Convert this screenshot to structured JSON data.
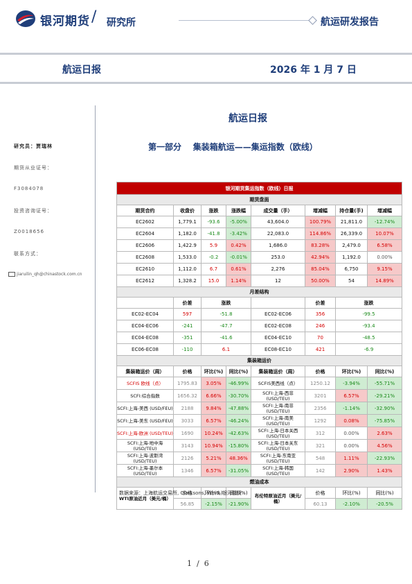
{
  "header": {
    "logo_text": "银河期货",
    "slash": "/",
    "institute": "研究所",
    "report_type": "航运研发报告"
  },
  "banner": {
    "report_name": "航运日报",
    "date": "2026 年 1 月 7 日"
  },
  "sidebar": {
    "researcher": "研究员：贾瑞林",
    "futures_cert_label": "期货从业证号：",
    "futures_cert": "F3084078",
    "invest_cert_label": "投资咨询证号：",
    "invest_cert": "Z0018656",
    "contact_label": "联系方式：",
    "email": "jiaruilin_qh@chinastock.com.cn"
  },
  "doc_title": "航运日报",
  "section_title": "第一部分    集装箱航运——集运指数（欧线）",
  "table": {
    "title": "银河期货集运指数（欧线）日报",
    "futures": {
      "section": "期货盘面",
      "headers": [
        "期货合约",
        "收盘价",
        "涨跌",
        "涨跌幅",
        "成交量（手）",
        "增减幅",
        "持仓量(手)",
        "增减幅"
      ],
      "rows": [
        [
          "EC2602",
          "1,779.1",
          "-93.6",
          "-5.00%",
          "43,604.0",
          "100.79%",
          "21,811.0",
          "-12.74%"
        ],
        [
          "EC2604",
          "1,182.0",
          "-41.8",
          "-3.42%",
          "22,083.0",
          "114.86%",
          "26,339.0",
          "10.07%"
        ],
        [
          "EC2606",
          "1,422.9",
          "5.9",
          "0.42%",
          "1,686.0",
          "83.28%",
          "2,479.0",
          "6.58%"
        ],
        [
          "EC2608",
          "1,533.0",
          "-0.2",
          "-0.01%",
          "253.0",
          "42.94%",
          "1,192.0",
          "0.00%"
        ],
        [
          "EC2610",
          "1,112.0",
          "6.7",
          "0.61%",
          "2,276",
          "85.04%",
          "6,750",
          "9.15%"
        ],
        [
          "EC2612",
          "1,328.2",
          "15.0",
          "1.14%",
          "12",
          "50.00%",
          "54",
          "14.89%"
        ]
      ]
    },
    "spread": {
      "section": "月差结构",
      "headers": [
        "价差",
        "涨跌",
        "价差",
        "涨跌"
      ],
      "rows": [
        [
          "EC02-EC04",
          "597",
          "-51.8",
          "EC02-EC06",
          "356",
          "-99.5"
        ],
        [
          "EC04-EC06",
          "-241",
          "-47.7",
          "EC02-EC08",
          "246",
          "-93.4"
        ],
        [
          "EC04-EC08",
          "-351",
          "-41.6",
          "EC04-EC10",
          "70",
          "-48.5"
        ],
        [
          "EC06-EC08",
          "-110",
          "6.1",
          "EC08-EC10",
          "421",
          "-6.9"
        ]
      ]
    },
    "freight": {
      "section": "集装箱运价",
      "headers": [
        "集装箱运价（周）",
        "价格",
        "环比(%)",
        "同比(%)",
        "集装箱运价（周）",
        "价格",
        "环比(%)",
        "同比(%)"
      ],
      "rows": [
        [
          "SCFIS 欧线（点）",
          "1795.83",
          "3.05%",
          "-46.99%",
          "SCFIS美西线（点）",
          "1250.12",
          "-3.94%",
          "-55.71%"
        ],
        [
          "SCFI:综合指数",
          "1656.32",
          "6.66%",
          "-30.70%",
          "SCFI:上海-西非 (USD/TEU)",
          "3201",
          "6.57%",
          "-29.21%"
        ],
        [
          "SCFI:上海-美西 (USD/FEU)",
          "2188",
          "9.84%",
          "-47.88%",
          "SCFI:上海-南非 (USD/TEU)",
          "2356",
          "-1.14%",
          "-32.90%"
        ],
        [
          "SCFI:上海-美东 (USD/FEU)",
          "3033",
          "6.57%",
          "-46.24%",
          "SCFI:上海-南美 (USD/TEU)",
          "1292",
          "0.08%",
          "-75.85%"
        ],
        [
          "SCFI:上海-欧洲 (USD/TEU)",
          "1690",
          "10.24%",
          "-42.63%",
          "SCFI:上海-日本关西 (USD/TEU)",
          "312",
          "0.00%",
          "2.63%"
        ],
        [
          "SCFI:上海-地中海 (USD/TEU)",
          "3143",
          "10.94%",
          "-15.80%",
          "SCFI:上海-日本关东 (USD/TEU)",
          "321",
          "0.00%",
          "4.56%"
        ],
        [
          "SCFI:上海-波斯湾 (USD/TEU)",
          "2126",
          "5.21%",
          "48.36%",
          "SCFI:上海-东南亚 (USD/TEU)",
          "548",
          "1.11%",
          "-22.93%"
        ],
        [
          "SCFI:上海-墨尔本 (USD/TEU)",
          "1346",
          "6.57%",
          "-31.05%",
          "SCFI:上海-韩国 (USD/TEU)",
          "142",
          "2.90%",
          "1.43%"
        ]
      ]
    },
    "fuel": {
      "section": "燃油成本",
      "headers": [
        "WTI原油近月（美元/桶）",
        "价格",
        "环比(%)",
        "同比(%)",
        "布伦特原油近月（美元/桶）",
        "价格",
        "环比(%)",
        "同比(%)"
      ],
      "rows": [
        [
          "",
          "56.85",
          "-2.15%",
          "-21.90%",
          "",
          "60.13",
          "-2.10%",
          "-20.5%"
        ]
      ]
    }
  },
  "source": "数据来源：上海航运交易所, Clarksons, Wind, 银河期货",
  "page": "1  /  6",
  "colors": {
    "brand_blue": "#1f3e7a",
    "title_red": "#c00000",
    "up_red": "#d40000",
    "down_green": "#1a8a1a",
    "up_bg": "#f6c9c9",
    "down_bg": "#cfecd2"
  }
}
